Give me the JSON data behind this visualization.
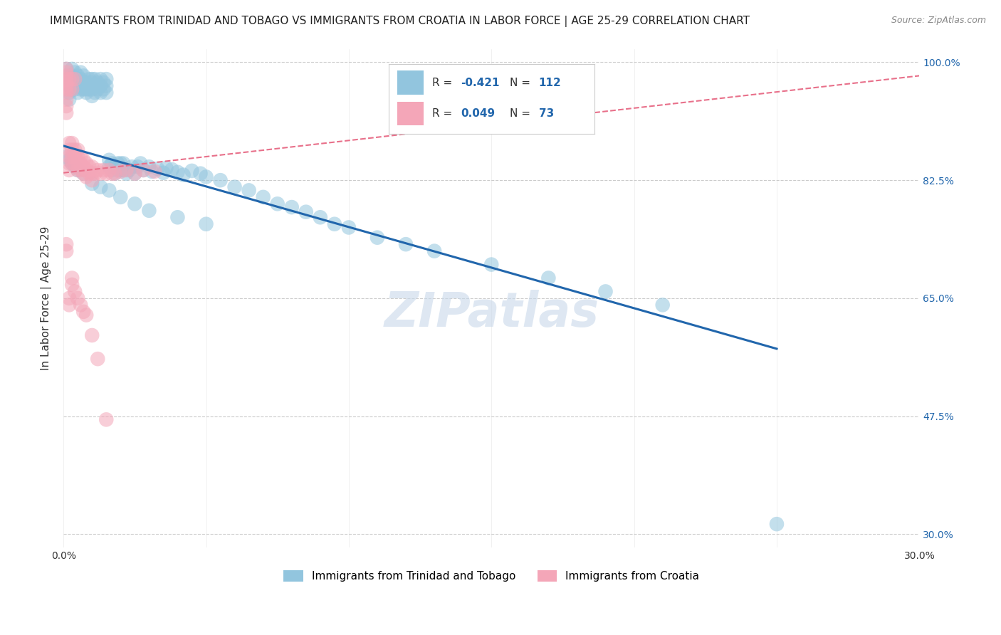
{
  "title": "IMMIGRANTS FROM TRINIDAD AND TOBAGO VS IMMIGRANTS FROM CROATIA IN LABOR FORCE | AGE 25-29 CORRELATION CHART",
  "source": "Source: ZipAtlas.com",
  "ylabel": "In Labor Force | Age 25-29",
  "legend_labels": [
    "Immigrants from Trinidad and Tobago",
    "Immigrants from Croatia"
  ],
  "legend_R": [
    -0.421,
    0.049
  ],
  "legend_N": [
    112,
    73
  ],
  "blue_color": "#92c5de",
  "pink_color": "#f4a6b8",
  "blue_line_color": "#2166ac",
  "pink_line_color": "#e8708a",
  "watermark": "ZIPatlas",
  "xlim": [
    0.0,
    0.3
  ],
  "ylim": [
    0.28,
    1.02
  ],
  "yticks": [
    1.0,
    0.825,
    0.65,
    0.475,
    0.3
  ],
  "ytick_labels": [
    "100.0%",
    "82.5%",
    "65.0%",
    "47.5%",
    "30.0%"
  ],
  "xticks": [
    0.0,
    0.05,
    0.1,
    0.15,
    0.2,
    0.25,
    0.3
  ],
  "xtick_labels": [
    "0.0%",
    "",
    "",
    "",
    "",
    "",
    "30.0%"
  ],
  "blue_scatter_x": [
    0.001,
    0.001,
    0.001,
    0.002,
    0.002,
    0.002,
    0.002,
    0.003,
    0.003,
    0.003,
    0.003,
    0.004,
    0.004,
    0.004,
    0.005,
    0.005,
    0.005,
    0.005,
    0.006,
    0.006,
    0.006,
    0.006,
    0.007,
    0.007,
    0.007,
    0.008,
    0.008,
    0.008,
    0.008,
    0.009,
    0.009,
    0.009,
    0.01,
    0.01,
    0.01,
    0.01,
    0.011,
    0.011,
    0.011,
    0.012,
    0.012,
    0.012,
    0.013,
    0.013,
    0.013,
    0.014,
    0.014,
    0.015,
    0.015,
    0.015,
    0.016,
    0.016,
    0.017,
    0.017,
    0.018,
    0.018,
    0.019,
    0.019,
    0.02,
    0.02,
    0.021,
    0.021,
    0.022,
    0.023,
    0.024,
    0.025,
    0.026,
    0.027,
    0.028,
    0.03,
    0.031,
    0.033,
    0.035,
    0.036,
    0.038,
    0.04,
    0.042,
    0.045,
    0.048,
    0.05,
    0.055,
    0.06,
    0.065,
    0.07,
    0.075,
    0.08,
    0.085,
    0.09,
    0.095,
    0.1,
    0.11,
    0.12,
    0.13,
    0.15,
    0.17,
    0.19,
    0.21,
    0.001,
    0.002,
    0.003,
    0.004,
    0.005,
    0.007,
    0.01,
    0.013,
    0.016,
    0.02,
    0.025,
    0.03,
    0.04,
    0.05,
    0.25
  ],
  "blue_scatter_y": [
    0.97,
    0.98,
    0.99,
    0.975,
    0.965,
    0.955,
    0.945,
    0.97,
    0.96,
    0.98,
    0.99,
    0.97,
    0.96,
    0.985,
    0.975,
    0.965,
    0.955,
    0.98,
    0.96,
    0.975,
    0.965,
    0.985,
    0.96,
    0.97,
    0.98,
    0.965,
    0.955,
    0.97,
    0.96,
    0.965,
    0.975,
    0.96,
    0.97,
    0.96,
    0.975,
    0.95,
    0.965,
    0.975,
    0.955,
    0.96,
    0.97,
    0.965,
    0.955,
    0.965,
    0.975,
    0.96,
    0.97,
    0.955,
    0.965,
    0.975,
    0.845,
    0.855,
    0.84,
    0.85,
    0.845,
    0.835,
    0.84,
    0.85,
    0.84,
    0.85,
    0.84,
    0.85,
    0.835,
    0.84,
    0.845,
    0.835,
    0.845,
    0.85,
    0.84,
    0.845,
    0.838,
    0.842,
    0.836,
    0.843,
    0.841,
    0.837,
    0.833,
    0.839,
    0.835,
    0.83,
    0.825,
    0.815,
    0.81,
    0.8,
    0.79,
    0.785,
    0.778,
    0.77,
    0.76,
    0.755,
    0.74,
    0.73,
    0.72,
    0.7,
    0.68,
    0.66,
    0.64,
    0.86,
    0.855,
    0.85,
    0.845,
    0.84,
    0.835,
    0.82,
    0.815,
    0.81,
    0.8,
    0.79,
    0.78,
    0.77,
    0.76,
    0.315
  ],
  "pink_scatter_x": [
    0.001,
    0.001,
    0.001,
    0.001,
    0.001,
    0.001,
    0.001,
    0.001,
    0.001,
    0.001,
    0.001,
    0.002,
    0.002,
    0.002,
    0.002,
    0.002,
    0.002,
    0.002,
    0.003,
    0.003,
    0.003,
    0.003,
    0.003,
    0.003,
    0.004,
    0.004,
    0.004,
    0.004,
    0.005,
    0.005,
    0.005,
    0.005,
    0.006,
    0.006,
    0.006,
    0.007,
    0.007,
    0.007,
    0.008,
    0.008,
    0.008,
    0.009,
    0.009,
    0.01,
    0.01,
    0.01,
    0.011,
    0.012,
    0.013,
    0.014,
    0.015,
    0.016,
    0.017,
    0.018,
    0.02,
    0.022,
    0.025,
    0.028,
    0.032,
    0.001,
    0.001,
    0.002,
    0.002,
    0.003,
    0.003,
    0.004,
    0.005,
    0.006,
    0.007,
    0.008,
    0.01,
    0.012,
    0.015
  ],
  "pink_scatter_y": [
    0.98,
    0.97,
    0.96,
    0.975,
    0.965,
    0.955,
    0.945,
    0.935,
    0.925,
    0.99,
    0.985,
    0.88,
    0.87,
    0.86,
    0.85,
    0.84,
    0.975,
    0.96,
    0.88,
    0.87,
    0.86,
    0.85,
    0.975,
    0.96,
    0.87,
    0.86,
    0.85,
    0.975,
    0.87,
    0.86,
    0.85,
    0.84,
    0.86,
    0.85,
    0.84,
    0.855,
    0.845,
    0.835,
    0.85,
    0.84,
    0.83,
    0.845,
    0.835,
    0.845,
    0.835,
    0.825,
    0.835,
    0.84,
    0.835,
    0.84,
    0.835,
    0.84,
    0.835,
    0.835,
    0.838,
    0.84,
    0.835,
    0.84,
    0.838,
    0.73,
    0.72,
    0.65,
    0.64,
    0.68,
    0.67,
    0.66,
    0.65,
    0.64,
    0.63,
    0.625,
    0.595,
    0.56,
    0.47
  ],
  "blue_regline_x": [
    0.0,
    0.25
  ],
  "blue_regline_y": [
    0.876,
    0.575
  ],
  "pink_regline_x": [
    0.0,
    0.3
  ],
  "pink_regline_y": [
    0.836,
    0.98
  ],
  "grid_color": "#cccccc",
  "title_fontsize": 11,
  "axis_label_fontsize": 11,
  "tick_fontsize": 10,
  "watermark_fontsize": 48,
  "watermark_color": "#c8d8ea",
  "watermark_alpha": 0.6,
  "background_color": "#ffffff"
}
